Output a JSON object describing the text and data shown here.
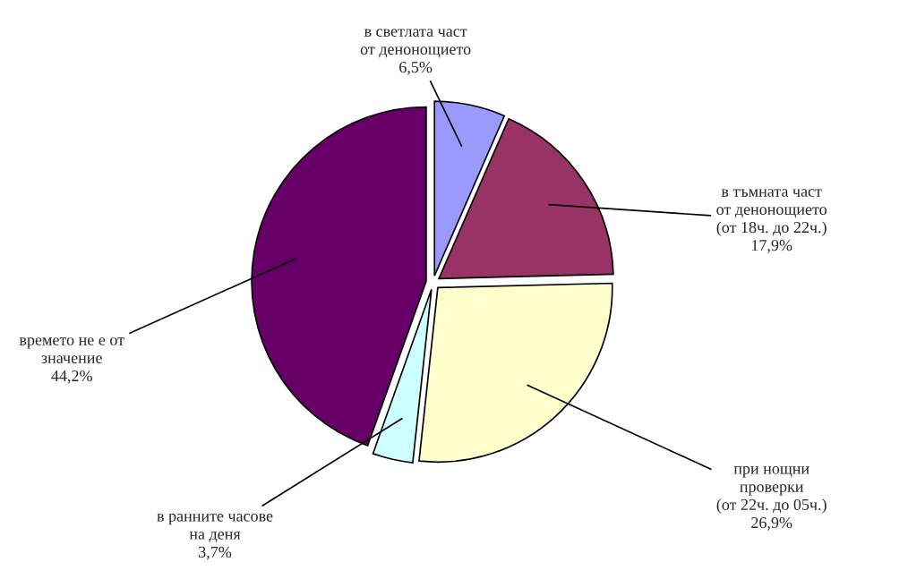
{
  "chart_data": {
    "type": "pie",
    "categories": [
      "в светлата част\nот денонощието",
      "в тъмната част\nот денонощието\n(от 18ч. до 22ч.)",
      "при нощни\nпроверки\n(от 22ч. до 05ч.)",
      "в ранните часове\nна деня",
      "времето не е от\nзначение"
    ],
    "values": [
      6.5,
      17.9,
      26.9,
      3.7,
      44.2
    ],
    "value_labels": [
      "6,5%",
      "17,9%",
      "26,9%",
      "3,7%",
      "44,2%"
    ],
    "colors": [
      "#9999ff",
      "#993366",
      "#ffffcc",
      "#ccffff",
      "#660066"
    ]
  }
}
